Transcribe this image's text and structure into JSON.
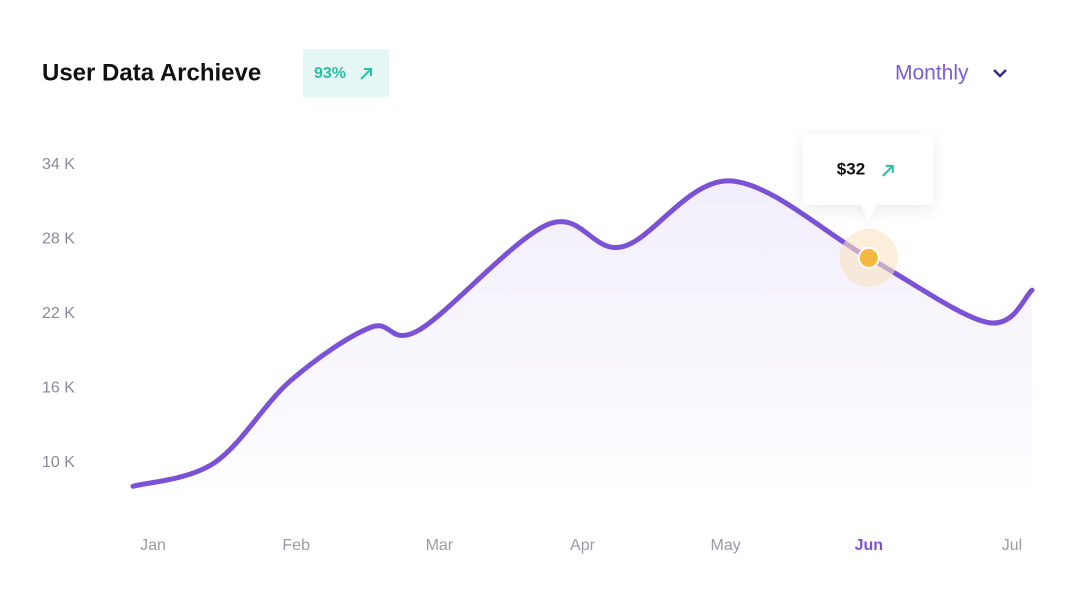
{
  "title": "User Data Archieve",
  "badge": "93%",
  "period": "Monthly",
  "chart_data": {
    "type": "line",
    "x": [
      -0.14,
      0.43,
      0.96,
      1.52,
      1.86,
      2.76,
      3.28,
      4.03,
      5,
      5.83,
      6.14
    ],
    "values": [
      8100,
      10000,
      16600,
      20900,
      20700,
      29200,
      27400,
      32700,
      26500,
      21300,
      23900
    ],
    "color": "#7b52d6",
    "xlim": [
      -0.14,
      6.14
    ],
    "xticks": [
      {
        "value": 0,
        "label": "Jan"
      },
      {
        "value": 1,
        "label": "Feb"
      },
      {
        "value": 2,
        "label": "Mar"
      },
      {
        "value": 3,
        "label": "Apr"
      },
      {
        "value": 4,
        "label": "May"
      },
      {
        "value": 5,
        "label": "Jun"
      },
      {
        "value": 6,
        "label": "Jul"
      }
    ],
    "highlight_xtick": 5,
    "ylim": [
      7800,
      36800
    ],
    "yticks": [
      {
        "value": 10000,
        "label": "10 K"
      },
      {
        "value": 16000,
        "label": "16 K"
      },
      {
        "value": 22000,
        "label": "22 K"
      },
      {
        "value": 28000,
        "label": "28 K"
      },
      {
        "value": 34000,
        "label": "34 K"
      }
    ],
    "tooltip": {
      "label": "$32",
      "point": 8
    }
  }
}
